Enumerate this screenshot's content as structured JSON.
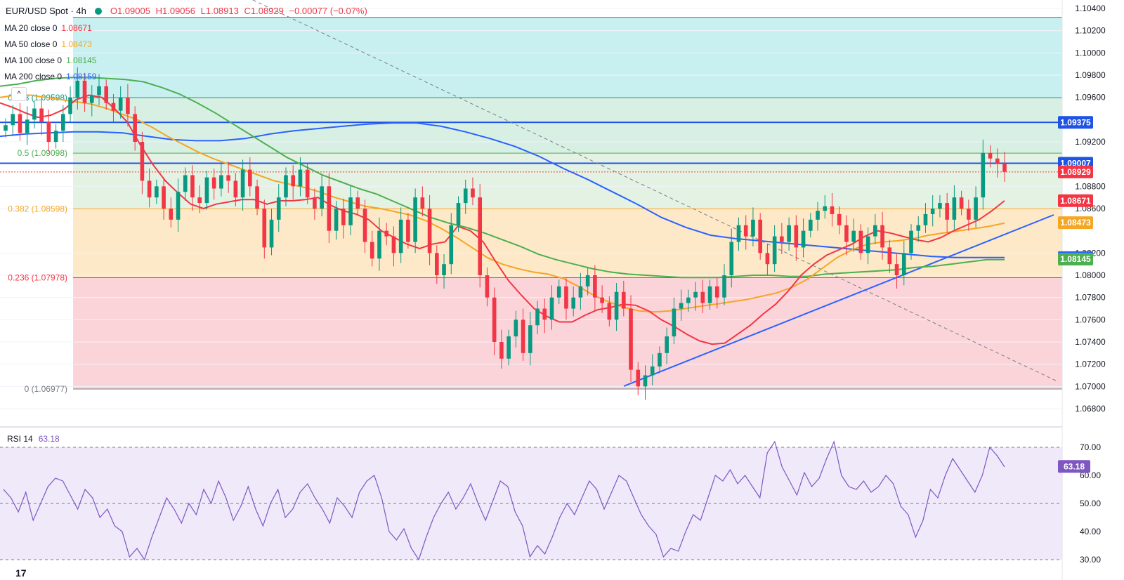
{
  "header": {
    "symbol": "EUR/USD Spot · 4h",
    "open": "O1.09005",
    "high": "H1.09056",
    "low": "L1.08913",
    "close": "C1.08929",
    "change": "−0.00077 (−0.07%)"
  },
  "legend": [
    {
      "label": "MA 20 close 0",
      "value": "1.08671",
      "color": "#f23645"
    },
    {
      "label": "MA 50 close 0",
      "value": "1.08473",
      "color": "#f5a623"
    },
    {
      "label": "MA 100 close 0",
      "value": "1.08145",
      "color": "#4caf50"
    },
    {
      "label": "MA 200 close 0",
      "value": "1.08159",
      "color": "#2962ff"
    }
  ],
  "collapse_label": "^",
  "rsi_legend": {
    "label": "RSI 14",
    "value": "63.18"
  },
  "tv_logo": "17",
  "chart_data": {
    "type": "candlestick",
    "symbol": "EUR/USD Spot",
    "timeframe": "4h",
    "price_axis": {
      "min": 1.068,
      "max": 1.104,
      "ticks": [
        "1.10400",
        "1.10200",
        "1.10000",
        "1.09800",
        "1.09600",
        "1.09200",
        "1.08800",
        "1.08600",
        "1.08200",
        "1.08000",
        "1.07800",
        "1.07600",
        "1.07400",
        "1.07200",
        "1.07000",
        "1.06800"
      ]
    },
    "fib_levels": [
      {
        "label": "0.618 (1.09598)",
        "price": 1.09598,
        "color": "#089981"
      },
      {
        "label": "0.5 (1.09098)",
        "price": 1.09098,
        "color": "#4caf50"
      },
      {
        "label": "0.382 (1.08598)",
        "price": 1.08598,
        "color": "#f5a623"
      },
      {
        "label": "0.236 (1.07978)",
        "price": 1.07978,
        "color": "#f23645"
      },
      {
        "label": "0 (1.06977)",
        "price": 1.06977,
        "color": "#787b86"
      }
    ],
    "fib_top_price": 1.1032,
    "horizontal_lines": [
      {
        "price": 1.09375,
        "color": "#1e53e5"
      },
      {
        "price": 1.09007,
        "color": "#1e53e5"
      }
    ],
    "last_price": 1.08929,
    "price_badges": [
      {
        "text": "1.09375",
        "price": 1.09375,
        "bg": "#1e53e5"
      },
      {
        "text": "1.09007",
        "price": 1.09007,
        "bg": "#1e53e5"
      },
      {
        "text": "1.08929",
        "price": 1.08929,
        "bg": "#f23645"
      },
      {
        "text": "1.08671",
        "price": 1.08671,
        "bg": "#f23645"
      },
      {
        "text": "1.08473",
        "price": 1.08473,
        "bg": "#f5a623"
      },
      {
        "text": "1.08159",
        "price": 1.08159,
        "bg": "#2962ff"
      },
      {
        "text": "1.08145",
        "price": 1.08145,
        "bg": "#4caf50"
      }
    ],
    "ma20": [
      1.0955,
      1.0951,
      1.0946,
      1.0942,
      1.0944,
      1.0949,
      1.0958,
      1.0962,
      1.096,
      1.095,
      1.0938,
      1.0918,
      1.09,
      1.0885,
      1.0874,
      1.0864,
      1.086,
      1.0864,
      1.0866,
      1.0868,
      1.0868,
      1.0864,
      1.0867,
      1.0867,
      1.0868,
      1.087,
      1.0863,
      1.0858,
      1.0855,
      1.085,
      1.084,
      1.0834,
      1.0828,
      1.0824,
      1.0828,
      1.083,
      1.0844,
      1.084,
      1.083,
      1.0812,
      1.0795,
      1.0782,
      1.077,
      1.0763,
      1.0758,
      1.0758,
      1.0764,
      1.0769,
      1.0771,
      1.0774,
      1.0773,
      1.0768,
      1.076,
      1.0754,
      1.0747,
      1.0741,
      1.0738,
      1.0739,
      1.0747,
      1.0755,
      1.0765,
      1.0774,
      1.0786,
      1.08,
      1.081,
      1.0818,
      1.0823,
      1.0828,
      1.0835,
      1.084,
      1.0838,
      1.0835,
      1.0832,
      1.083,
      1.0834,
      1.084,
      1.0845,
      1.085,
      1.0858,
      1.0867
    ],
    "ma50": [
      1.096,
      1.0962,
      1.0962,
      1.096,
      1.0958,
      1.0956,
      1.0954,
      1.095,
      1.0945,
      1.094,
      1.0933,
      1.0925,
      1.0918,
      1.0911,
      1.0905,
      1.09,
      1.0895,
      1.089,
      1.0885,
      1.0882,
      1.0879,
      1.0875,
      1.087,
      1.0866,
      1.0862,
      1.086,
      1.0857,
      1.0854,
      1.0849,
      1.0842,
      1.0834,
      1.0825,
      1.0816,
      1.081,
      1.0806,
      1.0803,
      1.0801,
      1.0797,
      1.079,
      1.0782,
      1.0776,
      1.0771,
      1.0768,
      1.0767,
      1.0768,
      1.077,
      1.0772,
      1.0774,
      1.0776,
      1.0778,
      1.0781,
      1.0784,
      1.0789,
      1.0796,
      1.0806,
      1.0816,
      1.0823,
      1.0828,
      1.083,
      1.0831,
      1.0833,
      1.0836,
      1.0838,
      1.084,
      1.0842,
      1.0844,
      1.0847
    ],
    "ma100": [
      1.097,
      1.0972,
      1.0975,
      1.0977,
      1.0978,
      1.0978,
      1.0977,
      1.0976,
      1.0974,
      1.0969,
      1.0963,
      1.0955,
      1.0946,
      1.0936,
      1.0926,
      1.0916,
      1.0906,
      1.0898,
      1.089,
      1.0884,
      1.0878,
      1.0873,
      1.0866,
      1.0859,
      1.0852,
      1.0847,
      1.0843,
      1.0838,
      1.0832,
      1.0826,
      1.0819,
      1.0814,
      1.081,
      1.0806,
      1.0803,
      1.0801,
      1.08,
      1.0799,
      1.0798,
      1.0798,
      1.0798,
      1.0799,
      1.08,
      1.08,
      1.0799,
      1.0799,
      1.0801,
      1.0802,
      1.0803,
      1.0804,
      1.0805,
      1.0807,
      1.0808,
      1.081,
      1.0812,
      1.0814,
      1.0814
    ],
    "ma200": [
      1.0925,
      1.0927,
      1.0928,
      1.0929,
      1.0929,
      1.0928,
      1.0925,
      1.0922,
      1.0921,
      1.0921,
      1.0923,
      1.0927,
      1.093,
      1.0932,
      1.0934,
      1.0936,
      1.0937,
      1.0937,
      1.0934,
      1.0929,
      1.0923,
      1.0916,
      1.0907,
      1.0896,
      1.0886,
      1.0875,
      1.0864,
      1.0852,
      1.0843,
      1.0836,
      1.0833,
      1.0831,
      1.0829,
      1.0827,
      1.0825,
      1.0823,
      1.0821,
      1.0819,
      1.0817,
      1.0816,
      1.0816,
      1.0816
    ],
    "candles_close": [
      1.0935,
      1.0945,
      1.0928,
      1.094,
      1.095,
      1.0938,
      1.092,
      1.093,
      1.0945,
      1.096,
      1.0975,
      1.0955,
      1.0962,
      1.097,
      1.0955,
      1.0948,
      1.096,
      1.0945,
      1.092,
      1.0885,
      1.087,
      1.088,
      1.086,
      1.085,
      1.0875,
      1.089,
      1.087,
      1.0865,
      1.0888,
      1.0878,
      1.089,
      1.0885,
      1.087,
      1.0895,
      1.088,
      1.086,
      1.0825,
      1.085,
      1.087,
      1.089,
      1.088,
      1.0895,
      1.087,
      1.086,
      1.088,
      1.084,
      1.086,
      1.0845,
      1.087,
      1.086,
      1.083,
      1.0815,
      1.084,
      1.0835,
      1.082,
      1.085,
      1.083,
      1.087,
      1.086,
      1.082,
      1.08,
      1.081,
      1.0845,
      1.0865,
      1.0878,
      1.087,
      1.08,
      1.078,
      1.074,
      1.0725,
      1.0745,
      1.076,
      1.073,
      1.0755,
      1.077,
      1.076,
      1.078,
      1.079,
      1.077,
      1.078,
      1.079,
      1.08,
      1.078,
      1.0775,
      1.076,
      1.0785,
      1.077,
      1.0715,
      1.07,
      1.071,
      1.0718,
      1.073,
      1.0745,
      1.077,
      1.0775,
      1.078,
      1.0785,
      1.0775,
      1.079,
      1.078,
      1.08,
      1.083,
      1.0845,
      1.0835,
      1.085,
      1.082,
      1.081,
      1.0835,
      1.083,
      1.0845,
      1.0825,
      1.084,
      1.085,
      1.0858,
      1.0862,
      1.0855,
      1.0845,
      1.083,
      1.084,
      1.082,
      1.0835,
      1.0845,
      1.0825,
      1.081,
      1.08,
      1.082,
      1.084,
      1.0845,
      1.0855,
      1.086,
      1.0865,
      1.085,
      1.087,
      1.086,
      1.085,
      1.087,
      1.091,
      1.0905,
      1.09,
      1.0893
    ]
  },
  "rsi_data": {
    "axis_ticks": [
      "70.00",
      "60.00",
      "50.00",
      "40.00",
      "30.00"
    ],
    "levels": [
      70,
      50,
      30
    ],
    "last": 63.18,
    "values": [
      55,
      52,
      47,
      54,
      44,
      50,
      56,
      59,
      58,
      53,
      48,
      55,
      52,
      45,
      48,
      42,
      40,
      31,
      34,
      30,
      38,
      45,
      52,
      48,
      43,
      50,
      46,
      55,
      50,
      58,
      52,
      44,
      49,
      56,
      48,
      42,
      50,
      55,
      45,
      48,
      54,
      57,
      52,
      48,
      43,
      52,
      49,
      45,
      54,
      58,
      60,
      52,
      40,
      37,
      41,
      34,
      30,
      38,
      45,
      50,
      54,
      48,
      52,
      57,
      50,
      44,
      51,
      58,
      56,
      47,
      42,
      31,
      35,
      32,
      38,
      45,
      50,
      46,
      52,
      58,
      55,
      48,
      54,
      60,
      58,
      52,
      46,
      42,
      39,
      31,
      34,
      33,
      40,
      46,
      44,
      52,
      60,
      58,
      62,
      57,
      60,
      56,
      52,
      68,
      72,
      63,
      58,
      53,
      61,
      56,
      59,
      66,
      72,
      60,
      56,
      55,
      58,
      54,
      56,
      60,
      57,
      49,
      46,
      38,
      44,
      55,
      52,
      60,
      66,
      62,
      58,
      54,
      60,
      70,
      67,
      63
    ]
  }
}
